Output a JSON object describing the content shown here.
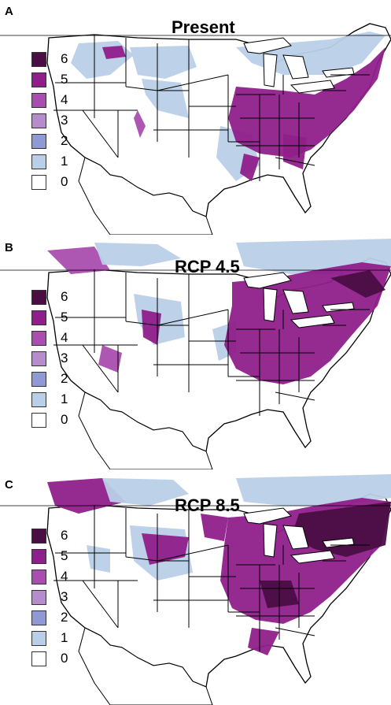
{
  "colors": {
    "class_6": "#4a0d44",
    "class_5": "#8f1f8a",
    "class_4": "#a94dae",
    "class_3": "#b78ccc",
    "class_2": "#8f99d6",
    "class_1": "#b9cfe8",
    "class_0": "#ffffff",
    "water": "#ffffff",
    "border": "#000000"
  },
  "legend": [
    {
      "label": "6",
      "color_key": "class_6"
    },
    {
      "label": "5",
      "color_key": "class_5"
    },
    {
      "label": "4",
      "color_key": "class_4"
    },
    {
      "label": "3",
      "color_key": "class_3"
    },
    {
      "label": "2",
      "color_key": "class_2"
    },
    {
      "label": "1",
      "color_key": "class_1"
    },
    {
      "label": "0",
      "color_key": "class_0"
    }
  ],
  "panels": [
    {
      "letter": "A",
      "title": "Present"
    },
    {
      "letter": "B",
      "title": "RCP 4.5"
    },
    {
      "letter": "C",
      "title": "RCP 8.5"
    }
  ]
}
